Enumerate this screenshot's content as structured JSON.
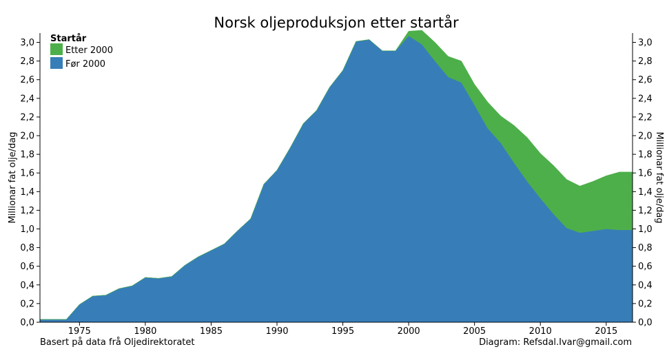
{
  "chart_data": {
    "type": "area",
    "stacked": true,
    "title": "Norsk oljeproduksjon etter startår",
    "ylabel": "Millionar fat olje/dag",
    "ylabel_right": "Millionar fat olje/dag",
    "xlim": [
      1972,
      2017
    ],
    "ylim": [
      0,
      3.1
    ],
    "x_ticks": [
      1975,
      1980,
      1985,
      1990,
      1995,
      2000,
      2005,
      2010,
      2015
    ],
    "y_ticks": [
      0.0,
      0.2,
      0.4,
      0.6,
      0.8,
      1.0,
      1.2,
      1.4,
      1.6,
      1.8,
      2.0,
      2.2,
      2.4,
      2.6,
      2.8,
      3.0
    ],
    "y_tick_labels": [
      "0,0",
      "0,2",
      "0,4",
      "0,6",
      "0,8",
      "1,0",
      "1,2",
      "1,4",
      "1,6",
      "1,8",
      "2,0",
      "2,2",
      "2,4",
      "2,6",
      "2,8",
      "3,0"
    ],
    "grid": false,
    "legend": {
      "title": "Startår",
      "placement": "top-left",
      "entries": [
        {
          "label": "Etter 2000",
          "color": "#4daf4a"
        },
        {
          "label": "Før 2000",
          "color": "#377eb8"
        }
      ]
    },
    "x": [
      1972,
      1973,
      1974,
      1975,
      1976,
      1977,
      1978,
      1979,
      1980,
      1981,
      1982,
      1983,
      1984,
      1985,
      1986,
      1987,
      1988,
      1989,
      1990,
      1991,
      1992,
      1993,
      1994,
      1995,
      1996,
      1997,
      1998,
      1999,
      2000,
      2001,
      2002,
      2003,
      2004,
      2005,
      2006,
      2007,
      2008,
      2009,
      2010,
      2011,
      2012,
      2013,
      2014,
      2015,
      2016,
      2017
    ],
    "series": [
      {
        "name": "Før 2000",
        "color": "#377eb8",
        "values": [
          0.03,
          0.03,
          0.03,
          0.19,
          0.28,
          0.29,
          0.36,
          0.39,
          0.48,
          0.47,
          0.49,
          0.61,
          0.7,
          0.77,
          0.84,
          0.98,
          1.11,
          1.48,
          1.63,
          1.87,
          2.13,
          2.27,
          2.52,
          2.7,
          3.01,
          3.03,
          2.91,
          2.91,
          3.07,
          2.98,
          2.8,
          2.63,
          2.57,
          2.33,
          2.08,
          1.92,
          1.71,
          1.51,
          1.33,
          1.16,
          1.01,
          0.96,
          0.98,
          1.0,
          0.99,
          0.99
        ]
      },
      {
        "name": "Etter 2000",
        "color": "#4daf4a",
        "values": [
          0,
          0,
          0,
          0,
          0,
          0,
          0,
          0,
          0,
          0,
          0,
          0,
          0,
          0,
          0,
          0,
          0,
          0,
          0,
          0,
          0,
          0,
          0,
          0,
          0,
          0,
          0,
          0,
          0.05,
          0.15,
          0.2,
          0.22,
          0.23,
          0.22,
          0.28,
          0.29,
          0.4,
          0.47,
          0.48,
          0.52,
          0.52,
          0.5,
          0.53,
          0.57,
          0.62,
          0.62
        ]
      }
    ]
  },
  "footer": {
    "source": "Basert på data frå Oljedirektoratet",
    "credit": "Diagram: Refsdal.Ivar@gmail.com"
  }
}
